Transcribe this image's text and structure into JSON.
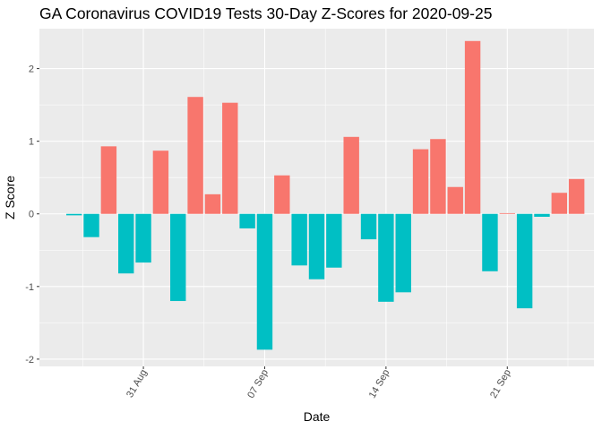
{
  "chart_data": {
    "type": "bar",
    "title": "GA Coronavirus COVID19 Tests 30-Day Z-Scores for 2020-09-25",
    "xlabel": "Date",
    "ylabel": "Z Score",
    "x": [
      "2020-08-27",
      "2020-08-28",
      "2020-08-29",
      "2020-08-30",
      "2020-08-31",
      "2020-09-01",
      "2020-09-02",
      "2020-09-03",
      "2020-09-04",
      "2020-09-05",
      "2020-09-06",
      "2020-09-07",
      "2020-09-08",
      "2020-09-09",
      "2020-09-10",
      "2020-09-11",
      "2020-09-12",
      "2020-09-13",
      "2020-09-14",
      "2020-09-15",
      "2020-09-16",
      "2020-09-17",
      "2020-09-18",
      "2020-09-19",
      "2020-09-20",
      "2020-09-21",
      "2020-09-22",
      "2020-09-23",
      "2020-09-24",
      "2020-09-25"
    ],
    "values": [
      -0.02,
      -0.32,
      0.93,
      -0.82,
      -0.67,
      0.87,
      -1.2,
      1.61,
      0.27,
      1.53,
      -0.2,
      -1.87,
      0.53,
      -0.71,
      -0.9,
      -0.74,
      1.06,
      -0.35,
      -1.21,
      -1.08,
      0.89,
      1.03,
      0.37,
      2.38,
      -0.79,
      0.01,
      -1.3,
      -0.04,
      0.29,
      0.48
    ],
    "xticks": [
      {
        "date": "2020-08-31",
        "label": "31 Aug"
      },
      {
        "date": "2020-09-07",
        "label": "07 Sep"
      },
      {
        "date": "2020-09-14",
        "label": "14 Sep"
      },
      {
        "date": "2020-09-21",
        "label": "21 Sep"
      }
    ],
    "yticks": [
      -2,
      -1,
      0,
      1,
      2
    ],
    "xlim": [
      "2020-08-25",
      "2020-09-26"
    ],
    "ylim": [
      -2.1,
      2.55
    ],
    "colors": {
      "positive": "#F8766D",
      "negative": "#00BFC4",
      "panel": "#EBEBEB",
      "grid": "#FFFFFF"
    },
    "legend": "none",
    "grid": true
  }
}
